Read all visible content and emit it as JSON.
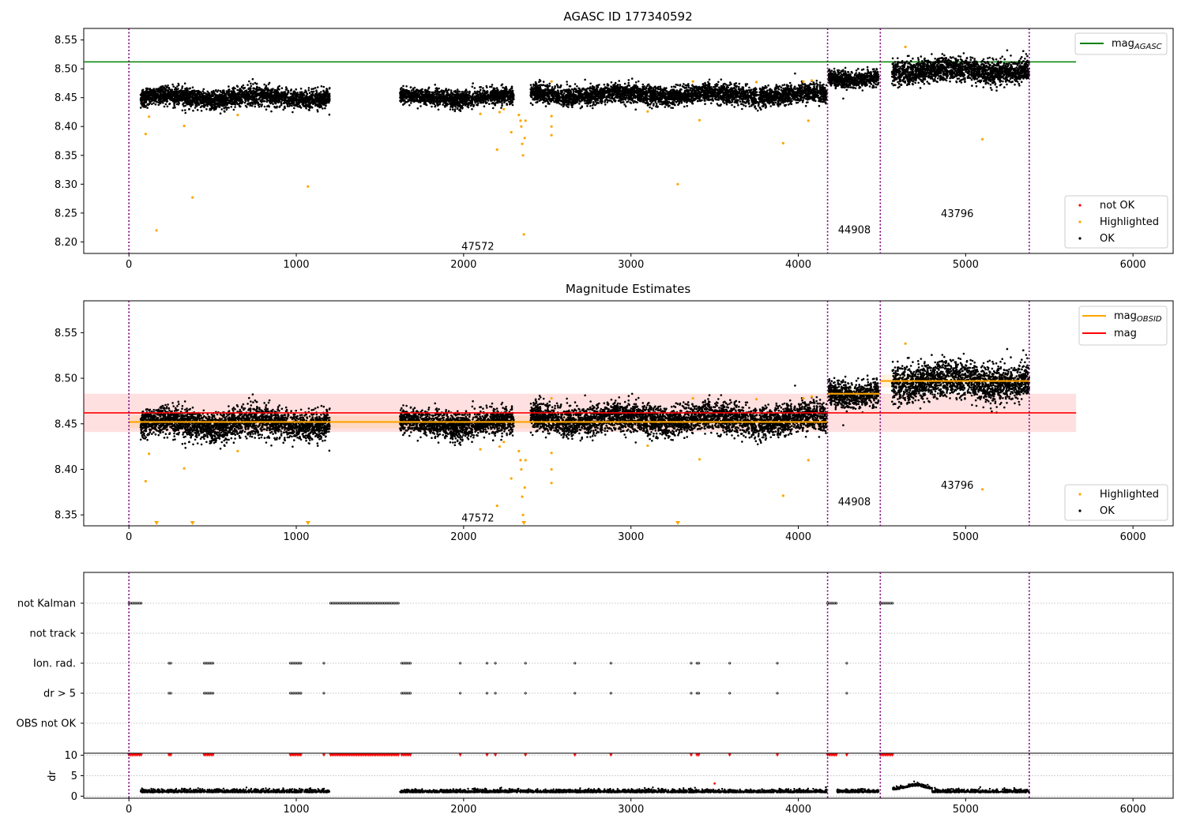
{
  "chart_data": [
    {
      "type": "scatter",
      "title": "AGASC ID 177340592",
      "xlim": [
        -270,
        6240
      ],
      "ylim": [
        8.18,
        8.57
      ],
      "xticks": [
        0,
        1000,
        2000,
        3000,
        4000,
        5000,
        6000
      ],
      "yticks": [
        8.2,
        8.25,
        8.3,
        8.35,
        8.4,
        8.45,
        8.5,
        8.55
      ],
      "obsid_boundaries": [
        0,
        4175,
        4490,
        5380
      ],
      "obsid_labels": [
        {
          "text": "47572",
          "x": 2085,
          "y": 8.193
        },
        {
          "text": "44908",
          "x": 4335,
          "y": 8.222
        },
        {
          "text": "43796",
          "x": 4950,
          "y": 8.25
        }
      ],
      "reference_lines": [
        {
          "name": "mag_AGASC",
          "y": 8.512,
          "x_range": [
            -270,
            5660
          ],
          "color": "#008000"
        }
      ],
      "segments": [
        {
          "x_range": [
            70,
            1200
          ],
          "mean": 8.45,
          "spread": 0.008
        },
        {
          "x_range": [
            1620,
            2300
          ],
          "mean": 8.45,
          "spread": 0.007
        },
        {
          "x_range": [
            2400,
            4170
          ],
          "mean": 8.455,
          "spread": 0.008
        },
        {
          "x_range": [
            4180,
            4480
          ],
          "mean": 8.485,
          "spread": 0.007
        },
        {
          "x_range": [
            4560,
            5380
          ],
          "mean": 8.497,
          "spread": 0.01
        }
      ],
      "highlighted": [
        [
          100,
          8.387
        ],
        [
          120,
          8.417
        ],
        [
          165,
          8.22
        ],
        [
          330,
          8.401
        ],
        [
          380,
          8.277
        ],
        [
          650,
          8.42
        ],
        [
          1070,
          8.296
        ],
        [
          2100,
          8.422
        ],
        [
          2200,
          8.36
        ],
        [
          2215,
          8.425
        ],
        [
          2240,
          8.43
        ],
        [
          2285,
          8.39
        ],
        [
          2330,
          8.42
        ],
        [
          2340,
          8.41
        ],
        [
          2345,
          8.4
        ],
        [
          2350,
          8.37
        ],
        [
          2355,
          8.35
        ],
        [
          2360,
          8.213
        ],
        [
          2365,
          8.38
        ],
        [
          2370,
          8.41
        ],
        [
          2525,
          8.478
        ],
        [
          2525,
          8.4
        ],
        [
          2525,
          8.385
        ],
        [
          2525,
          8.418
        ],
        [
          3100,
          8.426
        ],
        [
          3280,
          8.3
        ],
        [
          3370,
          8.478
        ],
        [
          3410,
          8.411
        ],
        [
          3750,
          8.477
        ],
        [
          3910,
          8.371
        ],
        [
          4030,
          8.478
        ],
        [
          4060,
          8.41
        ],
        [
          4080,
          8.48
        ],
        [
          4640,
          8.538
        ],
        [
          5100,
          8.378
        ]
      ],
      "legend": {
        "position": "lower-right",
        "entries": [
          "not OK",
          "Highlighted",
          "OK"
        ]
      },
      "top_legend": {
        "position": "upper-right",
        "label_main": "mag",
        "label_sub": "AGASC"
      }
    },
    {
      "type": "scatter",
      "title": "Magnitude Estimates",
      "xlim": [
        -270,
        6240
      ],
      "ylim": [
        8.338,
        8.585
      ],
      "xticks": [
        0,
        1000,
        2000,
        3000,
        4000,
        5000,
        6000
      ],
      "yticks": [
        8.35,
        8.4,
        8.45,
        8.5,
        8.55
      ],
      "obsid_labels": [
        {
          "text": "47572",
          "x": 2085,
          "y": 8.347
        },
        {
          "text": "44908",
          "x": 4335,
          "y": 8.365
        },
        {
          "text": "43796",
          "x": 4950,
          "y": 8.383
        }
      ],
      "mag_line": {
        "name": "mag",
        "y": 8.462,
        "band": [
          8.441,
          8.483
        ],
        "x_range": [
          -270,
          5660
        ],
        "color": "#ff0000"
      },
      "obsid_mag": [
        {
          "x_range": [
            0,
            4175
          ],
          "y": 8.452
        },
        {
          "x_range": [
            4175,
            4490
          ],
          "y": 8.483
        },
        {
          "x_range": [
            4490,
            5380
          ],
          "y": 8.497
        }
      ],
      "clipped_markers_x": [
        165,
        380,
        1070,
        2360,
        3280
      ],
      "legend": {
        "position": "lower-right",
        "entries": [
          "Highlighted",
          "OK"
        ]
      },
      "top_legend": {
        "position": "upper-right",
        "entries": [
          "mag",
          "mag"
        ],
        "sub": [
          "OBSID",
          ""
        ]
      }
    },
    {
      "type": "scatter",
      "title": "",
      "xlim": [
        -270,
        6240
      ],
      "flag_rows": [
        "not Kalman",
        "not track",
        "Ion. rad.",
        "dr > 5",
        "OBS not OK"
      ],
      "flag_intervals": {
        "not Kalman": [
          [
            0,
            75
          ],
          [
            1205,
            1620
          ],
          [
            4175,
            4230
          ],
          [
            4490,
            4565
          ]
        ],
        "not track": [],
        "Ion. rad.": [
          [
            240,
            260
          ],
          [
            450,
            510
          ],
          [
            965,
            1030
          ],
          [
            1165,
            1170
          ],
          [
            1630,
            1690
          ],
          [
            1980,
            1985
          ],
          [
            2140,
            2145
          ],
          [
            2190,
            2195
          ],
          [
            2370,
            2380
          ],
          [
            2665,
            2670
          ],
          [
            2880,
            2890
          ],
          [
            3360,
            3365
          ],
          [
            3395,
            3415
          ],
          [
            3590,
            3600
          ],
          [
            3875,
            3880
          ],
          [
            4290,
            4295
          ]
        ],
        "dr > 5": [
          [
            240,
            260
          ],
          [
            450,
            510
          ],
          [
            965,
            1030
          ],
          [
            1165,
            1170
          ],
          [
            1630,
            1690
          ],
          [
            1980,
            1985
          ],
          [
            2140,
            2145
          ],
          [
            2190,
            2195
          ],
          [
            2370,
            2380
          ],
          [
            2665,
            2670
          ],
          [
            2880,
            2890
          ],
          [
            3360,
            3365
          ],
          [
            3395,
            3415
          ],
          [
            3590,
            3600
          ],
          [
            3875,
            3880
          ],
          [
            4290,
            4295
          ]
        ],
        "OBS not OK": []
      },
      "dr_panel": {
        "ylabel": "dr",
        "ylim": [
          -0.5,
          10.5
        ],
        "yticks": [
          0,
          5,
          10
        ],
        "clipped_red_intervals": [
          [
            0,
            75
          ],
          [
            240,
            260
          ],
          [
            450,
            510
          ],
          [
            965,
            1030
          ],
          [
            1165,
            1170
          ],
          [
            1205,
            1620
          ],
          [
            1630,
            1690
          ],
          [
            1980,
            1985
          ],
          [
            2140,
            2145
          ],
          [
            2190,
            2195
          ],
          [
            2370,
            2380
          ],
          [
            2665,
            2670
          ],
          [
            2880,
            2890
          ],
          [
            3360,
            3365
          ],
          [
            3395,
            3415
          ],
          [
            3590,
            3600
          ],
          [
            3875,
            3880
          ],
          [
            4175,
            4230
          ],
          [
            4290,
            4295
          ],
          [
            4490,
            4565
          ]
        ],
        "outlier": [
          3500,
          3.1
        ],
        "segments": [
          [
            70,
            1200
          ],
          [
            1620,
            4170
          ],
          [
            4230,
            4480
          ],
          [
            4565,
            5380
          ]
        ]
      }
    }
  ]
}
